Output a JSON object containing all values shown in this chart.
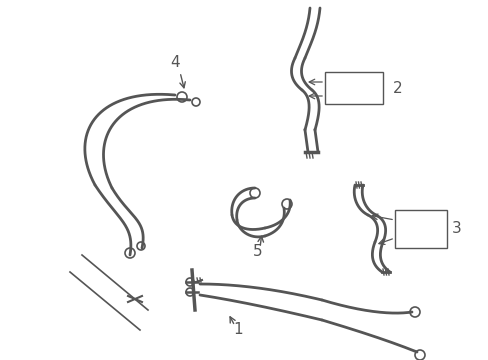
{
  "background_color": "#ffffff",
  "line_color": "#555555",
  "label_color": "#000000",
  "figsize": [
    4.89,
    3.6
  ],
  "dpi": 100
}
